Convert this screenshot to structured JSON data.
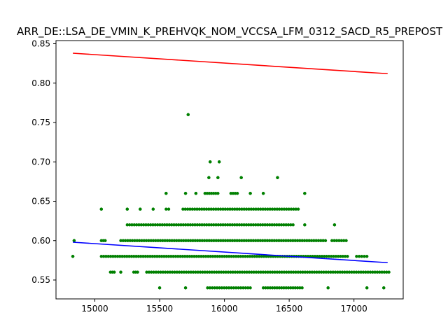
{
  "chart_data": {
    "type": "scatter",
    "title": "ARR_DE::LSA_DE_VMIN_K_PREHVQK_NOM_VCCSA_LFM_0312_SACD_R5_PREPOST",
    "xlabel": "",
    "ylabel": "",
    "xlim": [
      14700,
      17380
    ],
    "ylim": [
      0.526,
      0.854
    ],
    "x_ticks": [
      15000,
      15500,
      16000,
      16500,
      17000
    ],
    "y_ticks": [
      0.55,
      0.6,
      0.65,
      0.7,
      0.75,
      0.8,
      0.85
    ],
    "x_tick_labels": [
      "15000",
      "15500",
      "16000",
      "16500",
      "17000"
    ],
    "y_tick_labels": [
      "0.55",
      "0.60",
      "0.65",
      "0.70",
      "0.75",
      "0.80",
      "0.85"
    ],
    "grid": false,
    "colors": {
      "points": "#008000",
      "line_upper": "#ff0000",
      "line_lower": "#0000ff"
    },
    "bands": [
      {
        "y": 0.54,
        "segments": [
          [
            15500,
            15500
          ],
          [
            15700,
            15700
          ],
          [
            15870,
            16200
          ],
          [
            16300,
            16600
          ],
          [
            16800,
            16800
          ],
          [
            17100,
            17100
          ],
          [
            17230,
            17230
          ]
        ]
      },
      {
        "y": 0.56,
        "segments": [
          [
            15120,
            15150
          ],
          [
            15200,
            15200
          ],
          [
            15300,
            15330
          ],
          [
            15400,
            17270
          ]
        ]
      },
      {
        "y": 0.58,
        "segments": [
          [
            14830,
            14830
          ],
          [
            15050,
            16950
          ],
          [
            17020,
            17100
          ]
        ]
      },
      {
        "y": 0.6,
        "segments": [
          [
            14840,
            14840
          ],
          [
            15050,
            15080
          ],
          [
            15200,
            16780
          ],
          [
            16830,
            16940
          ]
        ]
      },
      {
        "y": 0.62,
        "segments": [
          [
            15250,
            16530
          ],
          [
            16620,
            16620
          ],
          [
            16850,
            16850
          ]
        ]
      },
      {
        "y": 0.64,
        "segments": [
          [
            15050,
            15050
          ],
          [
            15250,
            15250
          ],
          [
            15350,
            15350
          ],
          [
            15450,
            15450
          ],
          [
            15550,
            15570
          ],
          [
            15680,
            16570
          ]
        ]
      },
      {
        "y": 0.66,
        "segments": [
          [
            15550,
            15550
          ],
          [
            15700,
            15700
          ],
          [
            15780,
            15780
          ],
          [
            15850,
            15950
          ],
          [
            16050,
            16100
          ],
          [
            16200,
            16200
          ],
          [
            16300,
            16300
          ],
          [
            16620,
            16620
          ]
        ]
      },
      {
        "y": 0.68,
        "segments": [
          [
            15880,
            15880
          ],
          [
            15950,
            15950
          ],
          [
            16130,
            16130
          ],
          [
            16410,
            16410
          ]
        ]
      },
      {
        "y": 0.7,
        "segments": [
          [
            15890,
            15890
          ],
          [
            15960,
            15960
          ]
        ]
      },
      {
        "y": 0.76,
        "segments": [
          [
            15720,
            15720
          ]
        ]
      }
    ],
    "series": [
      {
        "type": "line",
        "color": "#ff0000",
        "x": [
          14830,
          17260
        ],
        "y": [
          0.838,
          0.812
        ]
      },
      {
        "type": "line",
        "color": "#0000ff",
        "x": [
          14830,
          17260
        ],
        "y": [
          0.598,
          0.572
        ]
      }
    ]
  }
}
